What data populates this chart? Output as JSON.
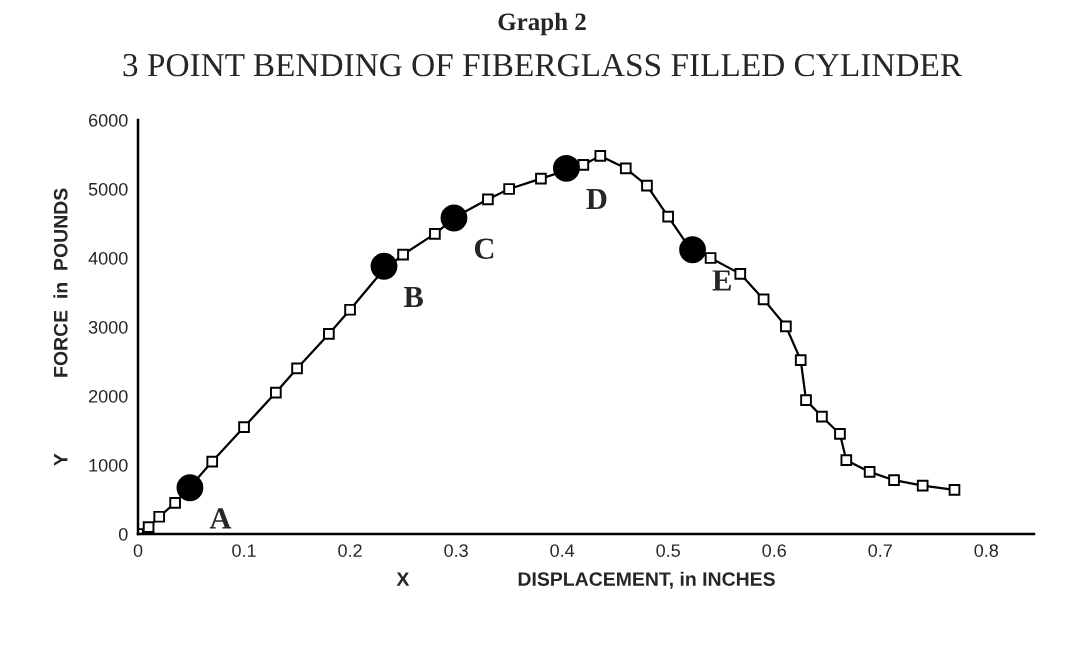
{
  "chart_data": {
    "type": "line",
    "title": "Graph 2",
    "subtitle": "3 POINT BENDING OF FIBERGLASS FILLED CYLINDER",
    "xlabel": "X                    DISPLACEMENT, in INCHES",
    "ylabel": "Y              FORCE  in  POUNDS",
    "series": [
      {
        "color": "#000000",
        "marker": "square",
        "x": [
          0,
          0.01,
          0.02,
          0.035,
          0.05,
          0.07,
          0.1,
          0.13,
          0.15,
          0.18,
          0.2,
          0.23,
          0.25,
          0.28,
          0.3,
          0.33,
          0.35,
          0.38,
          0.4,
          0.42,
          0.436,
          0.46,
          0.48,
          0.5,
          0.52,
          0.54,
          0.568,
          0.59,
          0.611,
          0.625,
          0.63,
          0.645,
          0.662,
          0.668,
          0.69,
          0.713,
          0.74,
          0.77
        ],
        "values": [
          0,
          100,
          250,
          450,
          700,
          1050,
          1550,
          2050,
          2400,
          2900,
          3250,
          3800,
          4050,
          4350,
          4600,
          4850,
          5000,
          5150,
          5250,
          5350,
          5480,
          5300,
          5050,
          4600,
          4150,
          4000,
          3770,
          3400,
          3010,
          2520,
          1940,
          1700,
          1450,
          1070,
          900,
          780,
          700,
          640
        ]
      },
      {
        "type": "scatter",
        "color": "#000000",
        "marker": "circle",
        "x": [
          0.049,
          0.232,
          0.298,
          0.404,
          0.523
        ],
        "values": [
          670,
          3880,
          4580,
          5300,
          4120
        ]
      }
    ],
    "annotations": [
      {
        "text": "A",
        "x": 0.049,
        "y": 670
      },
      {
        "text": "B",
        "x": 0.232,
        "y": 3880
      },
      {
        "text": "C",
        "x": 0.298,
        "y": 4580
      },
      {
        "text": "D",
        "x": 0.404,
        "y": 5300
      },
      {
        "text": "E",
        "x": 0.523,
        "y": 4120
      }
    ],
    "xlim": [
      0,
      0.845
    ],
    "xticks": [
      0,
      0.1,
      0.2,
      0.3,
      0.4,
      0.5,
      0.6,
      0.7,
      0.8
    ],
    "ylim": [
      0,
      6000
    ],
    "yticks": [
      0,
      1000,
      2000,
      3000,
      4000,
      5000,
      6000
    ],
    "grid": false,
    "legend": false
  }
}
